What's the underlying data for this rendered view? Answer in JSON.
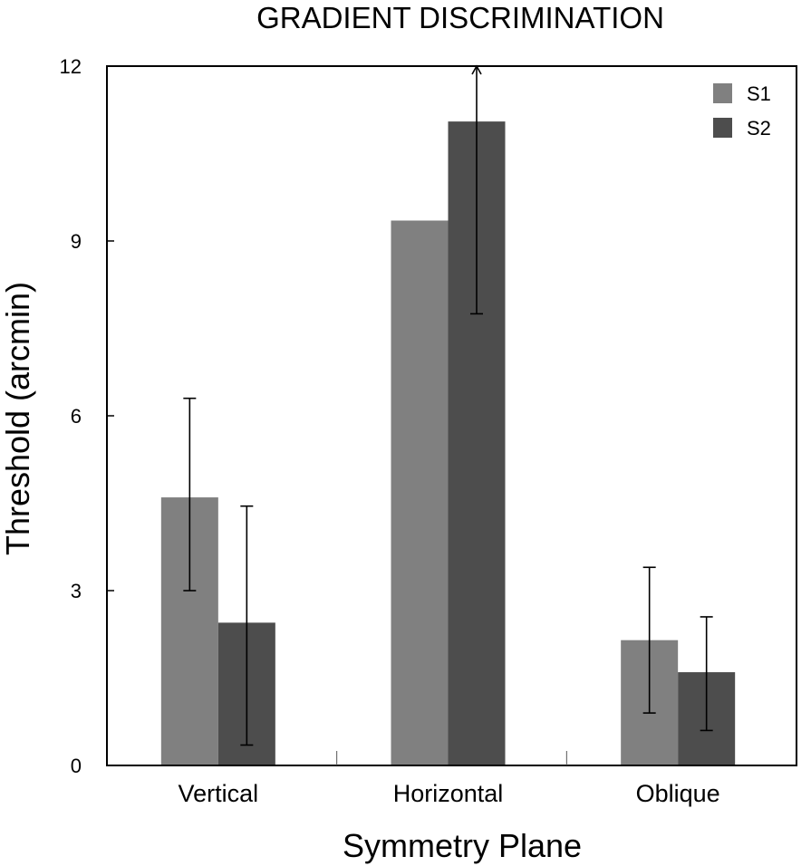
{
  "chart_data": {
    "type": "bar",
    "title": "GRADIENT DISCRIMINATION",
    "xlabel": "Symmetry Plane",
    "ylabel": "Threshold (arcmin)",
    "ylim": [
      0,
      12
    ],
    "yticks": [
      0,
      3,
      6,
      9,
      12
    ],
    "categories": [
      "Vertical",
      "Horizontal",
      "Oblique"
    ],
    "series": [
      {
        "name": "S1",
        "color": "#808080",
        "values": [
          4.6,
          9.35,
          2.15
        ],
        "error_low": [
          3.0,
          null,
          0.9
        ],
        "error_high": [
          6.3,
          null,
          3.4
        ]
      },
      {
        "name": "S2",
        "color": "#4d4d4d",
        "values": [
          2.45,
          11.05,
          1.6
        ],
        "error_low": [
          0.35,
          7.75,
          0.6
        ],
        "error_high": [
          4.45,
          12,
          2.55
        ]
      }
    ],
    "legend_position": "top-right",
    "grid": false
  }
}
